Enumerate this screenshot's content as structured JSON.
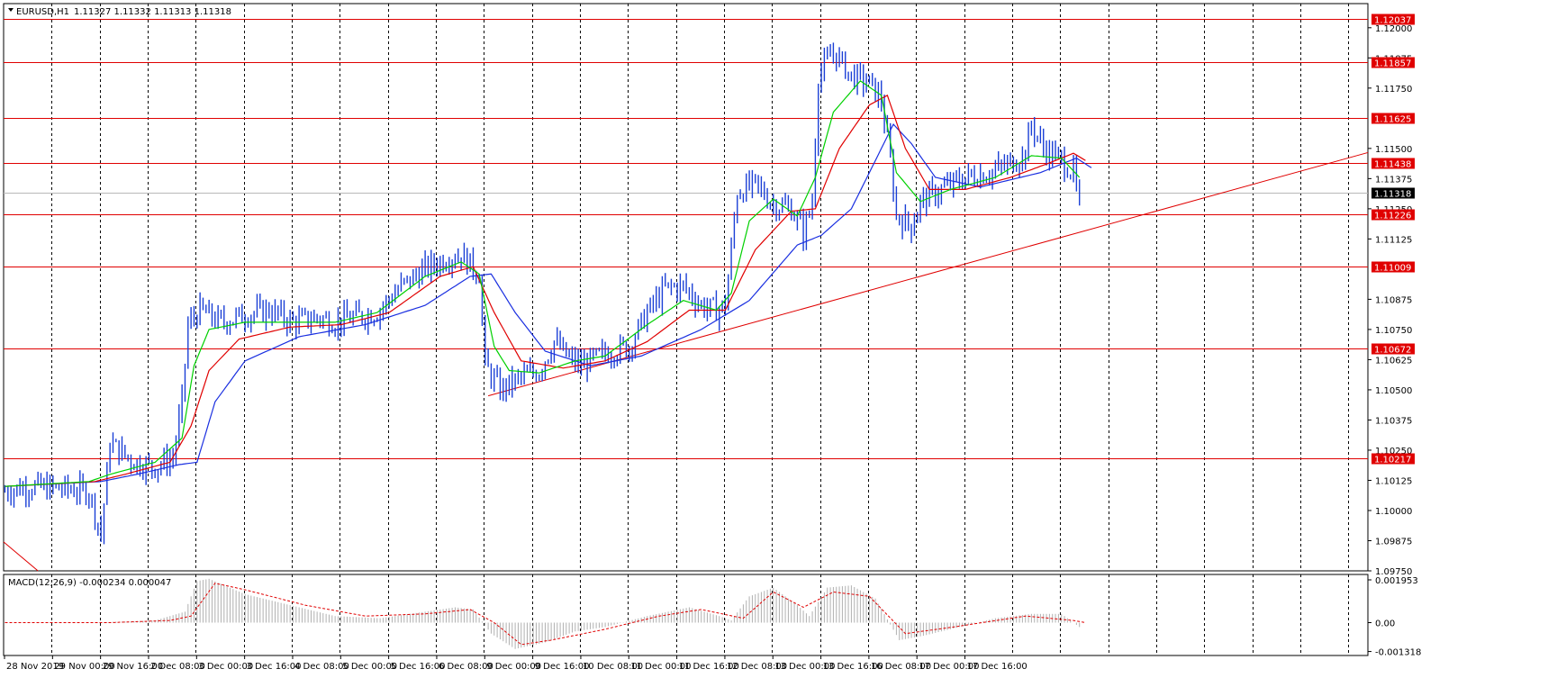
{
  "window": {
    "symbol_header": "EURUSD,H1",
    "ohlc_header": "1.11327 1.11332 1.11313 1.11318",
    "macd_header": "MACD(12,26,9) -0.000234 0.000047"
  },
  "colors": {
    "background": "#ffffff",
    "grid": "#000000",
    "candles": "#1a3fd6",
    "ma_fast": "#00d000",
    "ma_mid": "#e00000",
    "ma_slow": "#1a2fe0",
    "level_line": "#e00000",
    "level_tag": "#e00000",
    "current_tag": "#000000",
    "macd_hist": "#b0b0b0",
    "macd_signal": "#e00000"
  },
  "chart_data": [
    {
      "type": "candlestick",
      "title": "EURUSD,H1",
      "price_ticks": [
        "1.12000",
        "1.11875",
        "1.11750",
        "1.11500",
        "1.11375",
        "1.11250",
        "1.11125",
        "1.10875",
        "1.10750",
        "1.10625",
        "1.10500",
        "1.10375",
        "1.10250",
        "1.10125",
        "1.10000",
        "1.09875",
        "1.09750"
      ],
      "ylim": [
        1.0975,
        1.121
      ],
      "time_labels": [
        "28 Nov 2019",
        "29 Nov 00:00",
        "29 Nov 16:00",
        "2 Dec 08:00",
        "3 Dec 00:00",
        "3 Dec 16:00",
        "4 Dec 08:00",
        "5 Dec 00:00",
        "5 Dec 16:00",
        "6 Dec 08:00",
        "9 Dec 00:00",
        "9 Dec 16:00",
        "10 Dec 08:00",
        "11 Dec 00:00",
        "11 Dec 16:00",
        "12 Dec 08:00",
        "13 Dec 00:00",
        "13 Dec 16:00",
        "16 Dec 08:00",
        "17 Dec 00:00",
        "17 Dec 16:00"
      ],
      "levels": [
        {
          "label": "1.12037",
          "value": 1.12037
        },
        {
          "label": "1.11857",
          "value": 1.11857
        },
        {
          "label": "1.11625",
          "value": 1.11625
        },
        {
          "label": "1.11438",
          "value": 1.11438
        },
        {
          "label": "1.11226",
          "value": 1.11226
        },
        {
          "label": "1.11009",
          "value": 1.11009
        },
        {
          "label": "1.10672",
          "value": 1.10672
        },
        {
          "label": "1.10217",
          "value": 1.10217
        }
      ],
      "current_price": {
        "label": "1.11318",
        "value": 1.11318
      },
      "trendline": {
        "from": 1.10475,
        "to": 1.1133,
        "from_bar": 161,
        "to_bar": 410
      },
      "close_path": [
        [
          0,
          1.1008
        ],
        [
          8,
          1.101
        ],
        [
          18,
          1.1009
        ],
        [
          28,
          1.1008
        ],
        [
          32,
          1.099
        ],
        [
          35,
          1.1028
        ],
        [
          43,
          1.102
        ],
        [
          50,
          1.1018
        ],
        [
          56,
          1.1022
        ],
        [
          59,
          1.1045
        ],
        [
          61,
          1.1077
        ],
        [
          65,
          1.1083
        ],
        [
          72,
          1.1078
        ],
        [
          80,
          1.1081
        ],
        [
          88,
          1.1083
        ],
        [
          96,
          1.1078
        ],
        [
          104,
          1.108
        ],
        [
          110,
          1.1078
        ],
        [
          116,
          1.108
        ],
        [
          124,
          1.1082
        ],
        [
          132,
          1.1093
        ],
        [
          140,
          1.11
        ],
        [
          148,
          1.1105
        ],
        [
          152,
          1.1106
        ],
        [
          158,
          1.1098
        ],
        [
          160,
          1.106
        ],
        [
          165,
          1.105
        ],
        [
          172,
          1.1055
        ],
        [
          178,
          1.1058
        ],
        [
          183,
          1.107
        ],
        [
          188,
          1.1063
        ],
        [
          192,
          1.106
        ],
        [
          200,
          1.1065
        ],
        [
          208,
          1.1068
        ],
        [
          214,
          1.1082
        ],
        [
          220,
          1.1092
        ],
        [
          226,
          1.1093
        ],
        [
          232,
          1.1085
        ],
        [
          237,
          1.1083
        ],
        [
          240,
          1.1085
        ],
        [
          244,
          1.1132
        ],
        [
          250,
          1.1135
        ],
        [
          256,
          1.1127
        ],
        [
          262,
          1.1125
        ],
        [
          266,
          1.1115
        ],
        [
          269,
          1.1128
        ],
        [
          271,
          1.118
        ],
        [
          276,
          1.119
        ],
        [
          282,
          1.118
        ],
        [
          288,
          1.1177
        ],
        [
          292,
          1.117
        ],
        [
          295,
          1.1145
        ],
        [
          297,
          1.1122
        ],
        [
          302,
          1.1118
        ],
        [
          305,
          1.1128
        ],
        [
          312,
          1.1133
        ],
        [
          320,
          1.1138
        ],
        [
          328,
          1.114
        ],
        [
          334,
          1.1143
        ],
        [
          340,
          1.1148
        ],
        [
          342,
          1.116
        ],
        [
          346,
          1.115
        ],
        [
          352,
          1.1145
        ],
        [
          356,
          1.114
        ],
        [
          358,
          1.1125
        ]
      ],
      "ma_fast_path": [
        [
          0,
          1.101
        ],
        [
          28,
          1.1012
        ],
        [
          35,
          1.1015
        ],
        [
          50,
          1.102
        ],
        [
          59,
          1.103
        ],
        [
          63,
          1.106
        ],
        [
          68,
          1.1075
        ],
        [
          80,
          1.1078
        ],
        [
          96,
          1.1078
        ],
        [
          110,
          1.1078
        ],
        [
          124,
          1.1082
        ],
        [
          140,
          1.1097
        ],
        [
          152,
          1.1103
        ],
        [
          158,
          1.1098
        ],
        [
          163,
          1.1068
        ],
        [
          168,
          1.1058
        ],
        [
          178,
          1.1057
        ],
        [
          190,
          1.1062
        ],
        [
          200,
          1.1064
        ],
        [
          214,
          1.1077
        ],
        [
          226,
          1.1087
        ],
        [
          237,
          1.1083
        ],
        [
          242,
          1.109
        ],
        [
          248,
          1.112
        ],
        [
          256,
          1.1129
        ],
        [
          264,
          1.1122
        ],
        [
          270,
          1.1138
        ],
        [
          276,
          1.1165
        ],
        [
          285,
          1.1178
        ],
        [
          292,
          1.1172
        ],
        [
          297,
          1.114
        ],
        [
          305,
          1.1128
        ],
        [
          315,
          1.1133
        ],
        [
          330,
          1.1138
        ],
        [
          342,
          1.1147
        ],
        [
          352,
          1.1146
        ],
        [
          358,
          1.1138
        ]
      ],
      "ma_mid_path": [
        [
          0,
          1.101
        ],
        [
          30,
          1.1012
        ],
        [
          40,
          1.1015
        ],
        [
          55,
          1.102
        ],
        [
          62,
          1.1035
        ],
        [
          68,
          1.1058
        ],
        [
          78,
          1.1071
        ],
        [
          95,
          1.1076
        ],
        [
          112,
          1.1077
        ],
        [
          128,
          1.1082
        ],
        [
          145,
          1.1097
        ],
        [
          156,
          1.1101
        ],
        [
          163,
          1.1082
        ],
        [
          172,
          1.1062
        ],
        [
          186,
          1.1059
        ],
        [
          200,
          1.1062
        ],
        [
          214,
          1.107
        ],
        [
          228,
          1.1083
        ],
        [
          240,
          1.1083
        ],
        [
          250,
          1.1108
        ],
        [
          262,
          1.1124
        ],
        [
          270,
          1.1125
        ],
        [
          278,
          1.115
        ],
        [
          288,
          1.1168
        ],
        [
          294,
          1.1172
        ],
        [
          300,
          1.115
        ],
        [
          308,
          1.1133
        ],
        [
          320,
          1.1133
        ],
        [
          335,
          1.1138
        ],
        [
          348,
          1.1144
        ],
        [
          356,
          1.1148
        ],
        [
          360,
          1.1145
        ]
      ],
      "ma_slow_path": [
        [
          0,
          1.101
        ],
        [
          32,
          1.1012
        ],
        [
          44,
          1.1015
        ],
        [
          58,
          1.1019
        ],
        [
          64,
          1.102
        ],
        [
          70,
          1.1045
        ],
        [
          80,
          1.1062
        ],
        [
          98,
          1.1072
        ],
        [
          120,
          1.1077
        ],
        [
          140,
          1.1085
        ],
        [
          155,
          1.1097
        ],
        [
          162,
          1.1098
        ],
        [
          170,
          1.1082
        ],
        [
          180,
          1.1066
        ],
        [
          195,
          1.106
        ],
        [
          212,
          1.1064
        ],
        [
          232,
          1.1075
        ],
        [
          248,
          1.1087
        ],
        [
          264,
          1.111
        ],
        [
          272,
          1.1114
        ],
        [
          282,
          1.1125
        ],
        [
          296,
          1.116
        ],
        [
          302,
          1.1152
        ],
        [
          310,
          1.1138
        ],
        [
          325,
          1.1134
        ],
        [
          345,
          1.114
        ],
        [
          357,
          1.1146
        ],
        [
          362,
          1.1142
        ]
      ]
    },
    {
      "type": "bar",
      "title": "MACD(12,26,9)",
      "ticks": [
        "0.001953",
        "0.00",
        "-0.001318"
      ],
      "ylim": [
        -0.0015,
        0.0022
      ],
      "macd_path": [
        [
          0,
          0.0
        ],
        [
          30,
          0.0
        ],
        [
          50,
          0.0001
        ],
        [
          60,
          0.0005
        ],
        [
          64,
          0.0019
        ],
        [
          68,
          0.002
        ],
        [
          80,
          0.0013
        ],
        [
          95,
          0.0008
        ],
        [
          110,
          0.0003
        ],
        [
          125,
          0.0002
        ],
        [
          140,
          0.0005
        ],
        [
          150,
          0.0007
        ],
        [
          156,
          0.0006
        ],
        [
          162,
          -0.0005
        ],
        [
          170,
          -0.0012
        ],
        [
          180,
          -0.0009
        ],
        [
          190,
          -0.0004
        ],
        [
          200,
          -0.0002
        ],
        [
          214,
          0.0003
        ],
        [
          228,
          0.0007
        ],
        [
          238,
          0.0003
        ],
        [
          242,
          0.0001
        ],
        [
          248,
          0.0012
        ],
        [
          256,
          0.0016
        ],
        [
          264,
          0.0008
        ],
        [
          268,
          0.0003
        ],
        [
          274,
          0.0016
        ],
        [
          282,
          0.0017
        ],
        [
          290,
          0.0011
        ],
        [
          298,
          -0.0008
        ],
        [
          306,
          -0.0006
        ],
        [
          318,
          -0.0002
        ],
        [
          330,
          0.0002
        ],
        [
          342,
          0.0004
        ],
        [
          352,
          0.0004
        ],
        [
          358,
          -0.0002
        ]
      ],
      "signal_path": [
        [
          0,
          0.0
        ],
        [
          35,
          0.0
        ],
        [
          55,
          0.0001
        ],
        [
          62,
          0.0003
        ],
        [
          70,
          0.0018
        ],
        [
          80,
          0.0015
        ],
        [
          100,
          0.0008
        ],
        [
          120,
          0.0003
        ],
        [
          140,
          0.0004
        ],
        [
          155,
          0.0006
        ],
        [
          163,
          0.0
        ],
        [
          172,
          -0.001
        ],
        [
          182,
          -0.0008
        ],
        [
          200,
          -0.0003
        ],
        [
          218,
          0.0003
        ],
        [
          232,
          0.0006
        ],
        [
          246,
          0.0002
        ],
        [
          256,
          0.0014
        ],
        [
          266,
          0.0007
        ],
        [
          276,
          0.0014
        ],
        [
          288,
          0.0012
        ],
        [
          300,
          -0.0005
        ],
        [
          316,
          -0.0002
        ],
        [
          340,
          0.0003
        ],
        [
          356,
          0.0001
        ],
        [
          360,
          0.0
        ]
      ]
    }
  ]
}
